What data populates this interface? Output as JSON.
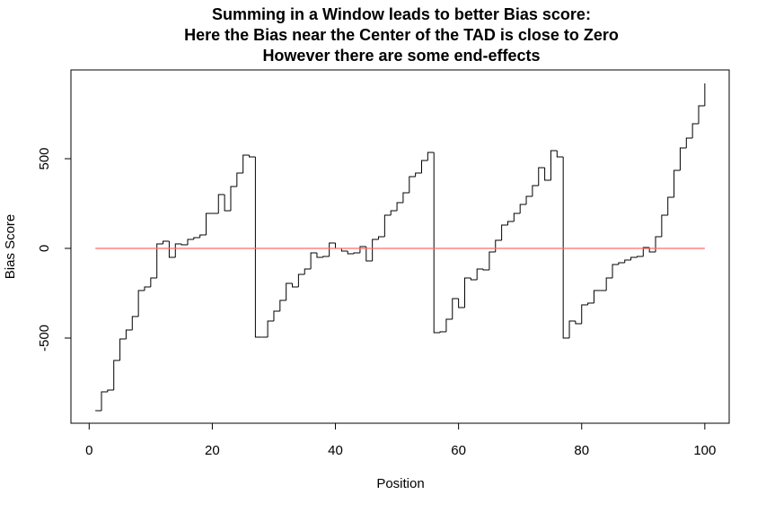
{
  "chart_data": {
    "type": "step",
    "title": [
      "Summing in a Window leads to better Bias score:",
      "Here the Bias near the Center of the TAD is close to Zero",
      "However there are some end-effects"
    ],
    "x_label": "Position",
    "y_label": "Bias Score",
    "xlim": [
      -2.96,
      103.96
    ],
    "ylim": [
      -975,
      995
    ],
    "xticks": [
      0,
      20,
      40,
      60,
      80,
      100
    ],
    "yticks": [
      -500,
      0,
      500
    ],
    "series": [
      {
        "color": "#000000",
        "x": [
          1,
          2,
          3,
          4,
          5,
          6,
          7,
          8,
          9,
          10,
          11,
          12,
          13,
          14,
          15,
          16,
          17,
          18,
          19,
          20,
          21,
          22,
          23,
          24,
          25,
          26,
          27,
          28,
          29,
          30,
          31,
          32,
          33,
          34,
          35,
          36,
          37,
          38,
          39,
          40,
          41,
          42,
          43,
          44,
          45,
          46,
          47,
          48,
          49,
          50,
          51,
          52,
          53,
          54,
          55,
          56,
          57,
          58,
          59,
          60,
          61,
          62,
          63,
          64,
          65,
          66,
          67,
          68,
          69,
          70,
          71,
          72,
          73,
          74,
          75,
          76,
          77,
          78,
          79,
          80,
          81,
          82,
          83,
          84,
          85,
          86,
          87,
          88,
          89,
          90,
          91,
          92,
          93,
          94,
          95,
          96,
          97,
          98,
          99,
          100
        ],
        "values": [
          -905,
          -800,
          -790,
          -625,
          -505,
          -455,
          -380,
          -235,
          -215,
          -165,
          25,
          40,
          -50,
          25,
          20,
          50,
          60,
          75,
          195,
          195,
          300,
          210,
          345,
          420,
          520,
          510,
          -495,
          -495,
          -405,
          -350,
          -290,
          -195,
          -215,
          -145,
          -115,
          -25,
          -50,
          -45,
          30,
          0,
          -15,
          -30,
          -25,
          10,
          -70,
          50,
          65,
          185,
          210,
          255,
          310,
          400,
          420,
          490,
          535,
          -470,
          -465,
          -395,
          -280,
          -330,
          -165,
          -175,
          -115,
          -120,
          -20,
          45,
          130,
          150,
          195,
          245,
          290,
          350,
          450,
          380,
          545,
          510,
          -500,
          -405,
          -420,
          -315,
          -305,
          -235,
          -235,
          -165,
          -90,
          -80,
          -65,
          -50,
          -45,
          5,
          -20,
          65,
          185,
          285,
          435,
          560,
          615,
          695,
          795,
          920
        ]
      },
      {
        "color": "#ff6b6b",
        "x": [
          1,
          100
        ],
        "values": [
          0,
          0
        ]
      }
    ]
  }
}
